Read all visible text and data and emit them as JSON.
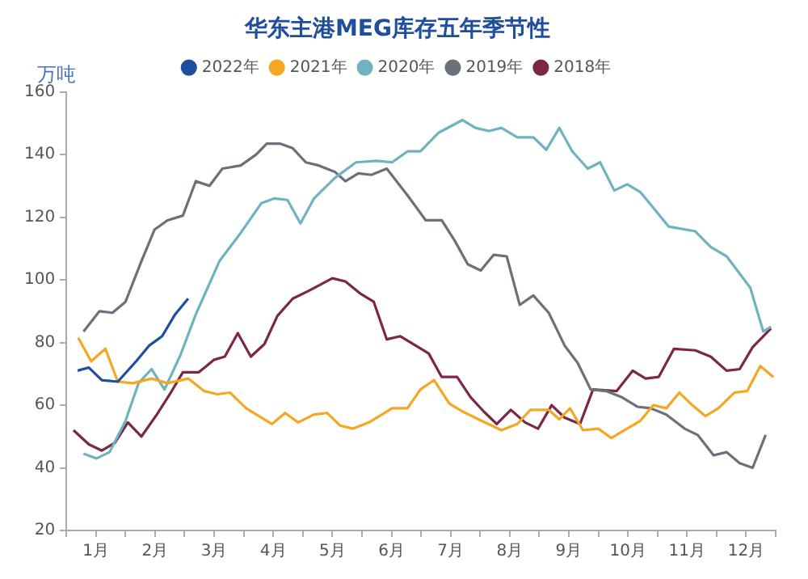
{
  "chart_data": {
    "type": "line",
    "title": "华东主港MEG库存五年季节性",
    "ylabel": "万吨",
    "legend": "top",
    "grid": false,
    "xlim": [
      0,
      12
    ],
    "xticks": [
      {
        "value": 0,
        "label": null
      },
      {
        "value": 0.5,
        "label": "1月"
      },
      {
        "value": 1,
        "label": null
      },
      {
        "value": 1.5,
        "label": "2月"
      },
      {
        "value": 2,
        "label": null
      },
      {
        "value": 2.5,
        "label": "3月"
      },
      {
        "value": 3,
        "label": null
      },
      {
        "value": 3.5,
        "label": "4月"
      },
      {
        "value": 4,
        "label": null
      },
      {
        "value": 4.5,
        "label": "5月"
      },
      {
        "value": 5,
        "label": null
      },
      {
        "value": 5.5,
        "label": "6月"
      },
      {
        "value": 6,
        "label": null
      },
      {
        "value": 6.5,
        "label": "7月"
      },
      {
        "value": 7,
        "label": null
      },
      {
        "value": 7.5,
        "label": "8月"
      },
      {
        "value": 8,
        "label": null
      },
      {
        "value": 8.5,
        "label": "9月"
      },
      {
        "value": 9,
        "label": null
      },
      {
        "value": 9.5,
        "label": "10月"
      },
      {
        "value": 10,
        "label": null
      },
      {
        "value": 10.5,
        "label": "11月"
      },
      {
        "value": 11,
        "label": null
      },
      {
        "value": 11.5,
        "label": "12月"
      },
      {
        "value": 12,
        "label": null
      }
    ],
    "ylim": [
      20,
      160
    ],
    "yticks": [
      20,
      40,
      60,
      80,
      100,
      120,
      140,
      160
    ],
    "series": [
      {
        "name": "2022年",
        "color": "#1f4e9c",
        "x": [
          0.19,
          0.38,
          0.6,
          0.87,
          1.18,
          1.4,
          1.62,
          1.84,
          2.06
        ],
        "values": [
          71,
          72,
          68,
          67.5,
          74,
          79,
          82,
          89,
          94
        ]
      },
      {
        "name": "2021年",
        "color": "#f5a623",
        "x": [
          0.2,
          0.42,
          0.66,
          0.87,
          1.13,
          1.44,
          1.71,
          2.06,
          2.33,
          2.55,
          2.77,
          3.04,
          3.48,
          3.7,
          3.92,
          4.19,
          4.41,
          4.63,
          4.85,
          5.12,
          5.51,
          5.77,
          5.99,
          6.22,
          6.48,
          6.7,
          6.97,
          7.36,
          7.63,
          7.85,
          8.16,
          8.34,
          8.52,
          8.74,
          9.0,
          9.22,
          9.44,
          9.71,
          9.93,
          10.15,
          10.37,
          10.59,
          10.81,
          11.03,
          11.3,
          11.52,
          11.74,
          11.96
        ],
        "values": [
          81.5,
          74,
          78,
          67.5,
          67,
          68.5,
          67,
          68.5,
          64.5,
          63.5,
          64,
          59,
          54,
          57.5,
          54.5,
          57,
          57.5,
          53.5,
          52.5,
          54.5,
          59,
          59,
          65,
          68,
          60.5,
          58,
          55.5,
          52,
          54,
          58.5,
          58.5,
          55.5,
          59,
          52,
          52.5,
          49.5,
          52,
          55,
          60,
          59,
          64,
          60,
          56.5,
          59,
          64,
          64.5,
          72.5,
          69
        ]
      },
      {
        "name": "2020年",
        "color": "#6fb3bf",
        "x": [
          0.29,
          0.51,
          0.73,
          1.0,
          1.22,
          1.44,
          1.66,
          1.93,
          2.19,
          2.59,
          2.95,
          3.3,
          3.52,
          3.74,
          3.96,
          4.19,
          4.54,
          4.9,
          5.25,
          5.51,
          5.77,
          5.99,
          6.3,
          6.7,
          6.92,
          7.15,
          7.36,
          7.63,
          7.9,
          8.12,
          8.34,
          8.56,
          8.82,
          9.03,
          9.27,
          9.49,
          9.71,
          9.93,
          10.19,
          10.64,
          10.9,
          11.17,
          11.39,
          11.57,
          11.79,
          11.92
        ],
        "values": [
          44.5,
          43,
          45,
          55,
          67,
          71.5,
          65,
          76,
          89,
          106,
          115,
          124.5,
          126,
          125.5,
          118,
          126,
          132.5,
          137.5,
          138,
          137.5,
          141,
          141,
          147,
          151,
          148.5,
          147.5,
          148.5,
          145.5,
          145.5,
          141.5,
          148.5,
          141,
          135.5,
          137.5,
          128.5,
          130.5,
          128,
          123,
          117,
          115.5,
          110.5,
          107.5,
          102,
          97.5,
          83.5,
          85
        ]
      },
      {
        "name": "2019年",
        "color": "#6b7178",
        "x": [
          0.29,
          0.56,
          0.78,
          1.0,
          1.27,
          1.49,
          1.71,
          1.97,
          2.19,
          2.42,
          2.64,
          2.95,
          3.21,
          3.39,
          3.61,
          3.83,
          4.05,
          4.27,
          4.54,
          4.72,
          4.94,
          5.16,
          5.42,
          5.77,
          6.08,
          6.35,
          6.57,
          6.79,
          7.01,
          7.23,
          7.45,
          7.67,
          7.9,
          8.16,
          8.43,
          8.65,
          8.87,
          9.13,
          9.4,
          9.66,
          9.89,
          10.15,
          10.46,
          10.68,
          10.95,
          11.17,
          11.39,
          11.61,
          11.83
        ],
        "values": [
          83.5,
          90,
          89.5,
          93,
          106,
          116,
          119,
          120.5,
          131.5,
          130,
          135.5,
          136.5,
          140,
          143.5,
          143.5,
          142,
          137.5,
          136.5,
          134.5,
          131.5,
          134,
          133.5,
          135.5,
          127,
          119,
          119,
          112.5,
          105,
          103,
          108,
          107.5,
          92,
          95,
          89.5,
          79,
          73.5,
          65,
          64.5,
          62.5,
          59.5,
          59,
          57,
          52.5,
          50.5,
          44,
          45,
          41.5,
          40,
          50.5
        ]
      },
      {
        "name": "2018年",
        "color": "#7b2748",
        "x": [
          0.12,
          0.38,
          0.6,
          0.82,
          1.04,
          1.27,
          1.53,
          1.75,
          1.97,
          2.24,
          2.5,
          2.68,
          2.9,
          3.12,
          3.35,
          3.57,
          3.83,
          4.1,
          4.5,
          4.72,
          4.98,
          5.2,
          5.42,
          5.65,
          5.91,
          6.13,
          6.35,
          6.61,
          6.84,
          7.06,
          7.28,
          7.52,
          7.76,
          7.98,
          8.21,
          8.43,
          8.69,
          8.91,
          9.31,
          9.58,
          9.8,
          10.02,
          10.28,
          10.64,
          10.9,
          11.17,
          11.39,
          11.61,
          11.92
        ],
        "values": [
          52,
          47.5,
          45.5,
          48,
          54.5,
          50,
          57,
          63.5,
          70.5,
          70.5,
          74.5,
          75.5,
          83,
          75.5,
          79.5,
          88.5,
          94,
          96.5,
          100.5,
          99.5,
          95.5,
          93,
          81,
          82,
          79,
          76.5,
          69,
          69,
          62.5,
          58,
          54,
          58.5,
          54.5,
          52.5,
          60,
          56,
          54,
          65,
          64.5,
          71,
          68.5,
          69,
          78,
          77.5,
          75.5,
          71,
          71.5,
          78.5,
          84.5
        ]
      }
    ]
  }
}
